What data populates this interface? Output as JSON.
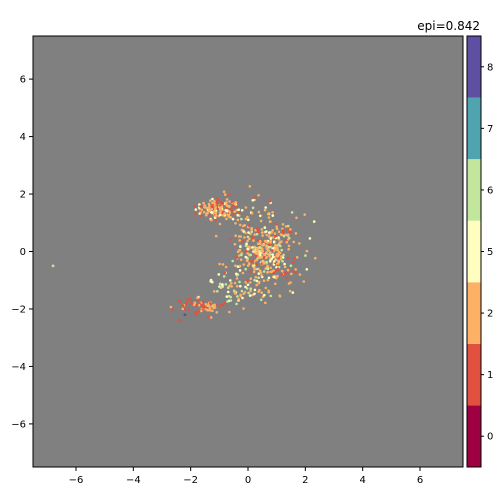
{
  "chart_data": {
    "type": "scatter",
    "title": "epi=0.842",
    "xlabel": "",
    "ylabel": "",
    "xlim": [
      -7.5,
      7.5
    ],
    "ylim": [
      -7.5,
      7.5
    ],
    "xticks": [
      -6,
      -4,
      -2,
      0,
      2,
      4,
      6
    ],
    "yticks": [
      -6,
      -4,
      -2,
      0,
      2,
      4,
      6
    ],
    "background_color": "#808080",
    "grid": false,
    "colorbar": {
      "ticks": [
        "0",
        "1",
        "2",
        "5",
        "6",
        "7",
        "8"
      ],
      "colors": [
        "#9e0142",
        "#e2513f",
        "#fdb164",
        "#fffebe",
        "#c3e69f",
        "#4fa4b0",
        "#5e4fa2"
      ]
    },
    "clusters": [
      {
        "name": "upper-left-arm",
        "center": [
          -1.0,
          1.5
        ],
        "spread": [
          0.4,
          0.2
        ],
        "count": 140,
        "colors": [
          "#fdb164",
          "#fdb164",
          "#fdb164",
          "#e2513f",
          "#fffebe"
        ]
      },
      {
        "name": "main-blob",
        "center": [
          0.6,
          0.0
        ],
        "spread": [
          0.55,
          0.65
        ],
        "count": 420,
        "colors": [
          "#fdb164",
          "#fdb164",
          "#fdb164",
          "#fdb164",
          "#e2513f",
          "#fffebe",
          "#c3e69f"
        ]
      },
      {
        "name": "lower-tail",
        "center": [
          -0.5,
          -1.3
        ],
        "spread": [
          0.5,
          0.25
        ],
        "count": 60,
        "colors": [
          "#c3e69f",
          "#fffebe",
          "#fdb164"
        ]
      },
      {
        "name": "lower-left-arm",
        "center": [
          -1.7,
          -1.9
        ],
        "spread": [
          0.45,
          0.15
        ],
        "count": 70,
        "colors": [
          "#e2513f",
          "#e2513f",
          "#fdb164"
        ]
      }
    ],
    "outliers": [
      {
        "x": -6.8,
        "y": -0.5,
        "color": "#c3e69f"
      },
      {
        "x": -2.2,
        "y": -2.2,
        "color": "#5e4fa2"
      },
      {
        "x": -2.4,
        "y": -2.4,
        "color": "#e2513f"
      }
    ]
  }
}
